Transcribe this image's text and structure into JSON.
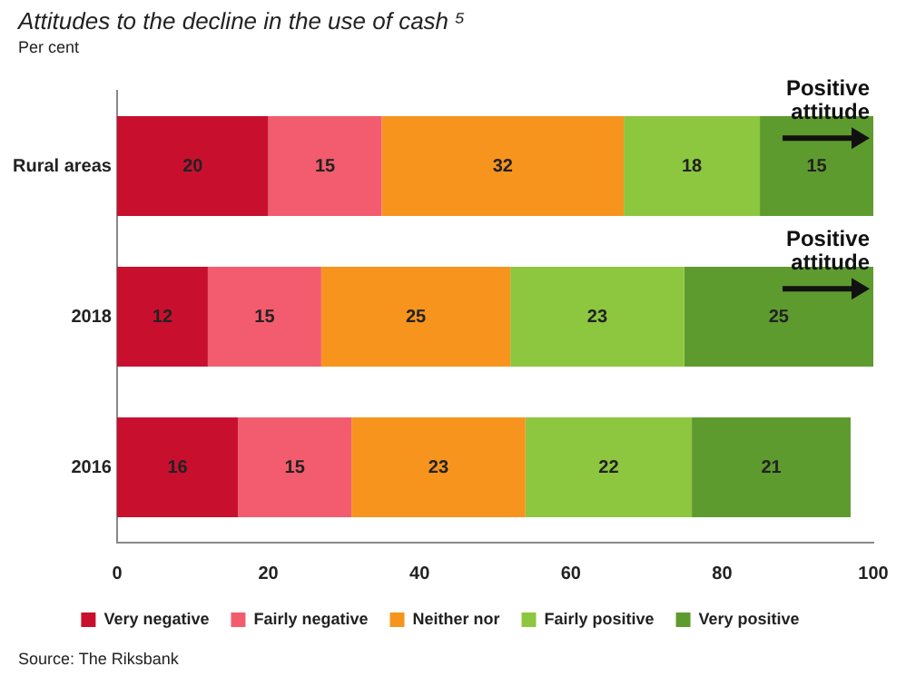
{
  "chart_data": {
    "type": "bar",
    "orientation": "horizontal",
    "stacked": true,
    "title": "Attitudes to the decline in the use of cash ⁵",
    "subtitle": "Per cent",
    "categories": [
      "Rural areas",
      "2018",
      "2016"
    ],
    "series": [
      {
        "name": "Very negative",
        "color": "#c8102e",
        "values": [
          20,
          12,
          16
        ]
      },
      {
        "name": "Fairly negative",
        "color": "#f25c6e",
        "values": [
          15,
          15,
          15
        ]
      },
      {
        "name": "Neither nor",
        "color": "#f7941d",
        "values": [
          32,
          25,
          23
        ]
      },
      {
        "name": "Fairly positive",
        "color": "#8dc63f",
        "values": [
          18,
          23,
          22
        ]
      },
      {
        "name": "Very positive",
        "color": "#5e9b2e",
        "values": [
          15,
          25,
          21
        ]
      }
    ],
    "xlim": [
      0,
      100
    ],
    "xticks": [
      0,
      20,
      40,
      60,
      80,
      100
    ],
    "data_labels": true,
    "legend": "bottom",
    "grid": false,
    "annotations": [
      {
        "text": "Positive attitude",
        "x": 100,
        "y": "Rural areas"
      },
      {
        "text": "Positive attitude",
        "x": 100,
        "y": "2018"
      },
      "Source: The Riksbank"
    ]
  }
}
